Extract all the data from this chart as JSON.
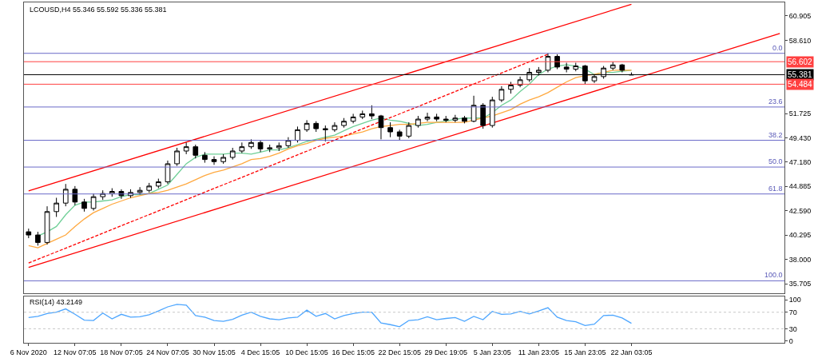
{
  "chart_data": [
    {
      "type": "candlestick",
      "title": "LCOUSD,H4 55.346 55.592 55.336 55.381",
      "color": "#000000",
      "categories": [
        null,
        null,
        null,
        null,
        null,
        null,
        null,
        null,
        null,
        null,
        null,
        null,
        null,
        null,
        null,
        null,
        null,
        null,
        null,
        null,
        null,
        null,
        null,
        null,
        null,
        null,
        null,
        null,
        null,
        null,
        null,
        null,
        null,
        null,
        null,
        null,
        null,
        null,
        null,
        null,
        null,
        null,
        null,
        null,
        null,
        null,
        null,
        null,
        null,
        null,
        null,
        null,
        null,
        null,
        null,
        null,
        null,
        null,
        null,
        null,
        null,
        null,
        null,
        null,
        null,
        null,
        null,
        null,
        null,
        null,
        null,
        null,
        null,
        null,
        null,
        null,
        null,
        null,
        null,
        null,
        null,
        null
      ],
      "ohlc": [
        [
          40.6,
          40.9,
          40.0,
          40.3
        ],
        [
          40.3,
          40.6,
          39.3,
          39.6
        ],
        [
          39.6,
          43.0,
          39.4,
          42.5
        ],
        [
          42.5,
          43.8,
          42.0,
          43.3
        ],
        [
          43.3,
          45.1,
          43.0,
          44.6
        ],
        [
          44.6,
          44.9,
          43.1,
          43.4
        ],
        [
          43.4,
          43.7,
          42.5,
          42.8
        ],
        [
          42.8,
          44.2,
          42.6,
          43.9
        ],
        [
          43.9,
          44.5,
          43.6,
          44.2
        ],
        [
          44.2,
          44.7,
          43.9,
          44.4
        ],
        [
          44.4,
          44.6,
          43.7,
          44.0
        ],
        [
          44.0,
          44.6,
          43.8,
          44.3
        ],
        [
          44.3,
          44.8,
          44.1,
          44.5
        ],
        [
          44.5,
          45.2,
          44.3,
          44.9
        ],
        [
          44.9,
          45.6,
          44.7,
          45.3
        ],
        [
          45.3,
          47.3,
          45.1,
          47.0
        ],
        [
          47.0,
          48.5,
          46.8,
          48.2
        ],
        [
          48.2,
          49.0,
          47.9,
          48.6
        ],
        [
          48.6,
          48.8,
          47.5,
          47.8
        ],
        [
          47.8,
          48.1,
          47.1,
          47.4
        ],
        [
          47.4,
          47.7,
          46.9,
          47.2
        ],
        [
          47.2,
          47.9,
          47.0,
          47.6
        ],
        [
          47.6,
          48.5,
          47.4,
          48.2
        ],
        [
          48.2,
          49.0,
          48.0,
          48.6
        ],
        [
          48.6,
          49.3,
          48.4,
          49.0
        ],
        [
          49.0,
          49.2,
          48.1,
          48.4
        ],
        [
          48.4,
          48.8,
          48.1,
          48.5
        ],
        [
          48.5,
          49.0,
          48.2,
          48.7
        ],
        [
          48.7,
          49.5,
          48.5,
          49.2
        ],
        [
          49.2,
          50.5,
          49.0,
          50.2
        ],
        [
          50.2,
          51.1,
          50.0,
          50.8
        ],
        [
          50.8,
          51.0,
          50.0,
          50.3
        ],
        [
          50.3,
          50.6,
          49.1,
          50.2
        ],
        [
          50.2,
          50.9,
          50.0,
          50.6
        ],
        [
          50.6,
          51.3,
          50.4,
          51.0
        ],
        [
          51.0,
          51.7,
          50.8,
          51.4
        ],
        [
          51.4,
          52.0,
          51.2,
          51.7
        ],
        [
          51.7,
          52.5,
          51.2,
          51.5
        ],
        [
          51.5,
          51.6,
          49.3,
          50.4
        ],
        [
          50.4,
          50.9,
          49.5,
          50.0
        ],
        [
          50.0,
          50.2,
          49.2,
          49.6
        ],
        [
          49.6,
          50.9,
          49.4,
          50.6
        ],
        [
          50.6,
          51.5,
          50.4,
          51.2
        ],
        [
          51.2,
          51.8,
          51.0,
          51.4
        ],
        [
          51.4,
          51.7,
          51.0,
          51.2
        ],
        [
          51.2,
          51.5,
          50.9,
          51.1
        ],
        [
          51.1,
          51.6,
          50.9,
          51.3
        ],
        [
          51.3,
          51.5,
          50.8,
          51.0
        ],
        [
          51.0,
          53.4,
          50.9,
          52.5
        ],
        [
          52.5,
          52.7,
          50.3,
          50.6
        ],
        [
          50.6,
          53.3,
          50.4,
          53.0
        ],
        [
          53.0,
          54.3,
          52.8,
          54.0
        ],
        [
          54.0,
          54.7,
          53.6,
          54.4
        ],
        [
          54.4,
          55.2,
          54.2,
          54.9
        ],
        [
          54.9,
          56.0,
          54.7,
          55.6
        ],
        [
          55.6,
          56.1,
          55.3,
          55.8
        ],
        [
          55.8,
          57.4,
          55.6,
          57.1
        ],
        [
          57.1,
          57.3,
          55.9,
          56.1
        ],
        [
          56.1,
          56.5,
          55.6,
          55.9
        ],
        [
          55.9,
          56.5,
          55.7,
          56.2
        ],
        [
          56.2,
          56.3,
          54.5,
          54.8
        ],
        [
          54.8,
          55.4,
          54.6,
          55.2
        ],
        [
          55.2,
          56.2,
          55.0,
          56.0
        ],
        [
          56.0,
          56.6,
          55.8,
          56.3
        ],
        [
          56.3,
          56.4,
          55.6,
          55.8
        ],
        [
          55.346,
          55.592,
          55.336,
          55.381
        ],
        null,
        null,
        null,
        null,
        null,
        null,
        null,
        null,
        null,
        null,
        null,
        null,
        null,
        null,
        null,
        null
      ],
      "series": [
        {
          "type": "line",
          "color": "#6fcf97",
          "values": [
            null,
            40.2,
            40.6,
            41.1,
            42.2,
            43.1,
            43.4,
            43.4,
            43.5,
            43.6,
            43.9,
            44.1,
            44.1,
            44.2,
            44.6,
            45.0,
            46.0,
            47.0,
            47.6,
            47.9,
            47.9,
            47.9,
            48.0,
            48.0,
            47.9,
            48.1,
            48.3,
            48.3,
            48.5,
            48.8,
            49.1,
            49.3,
            49.5,
            49.7,
            50.1,
            50.5,
            50.8,
            51.1,
            51.3,
            51.1,
            51.0,
            50.8,
            50.6,
            50.7,
            50.9,
            51.0,
            51.2,
            51.3,
            51.3,
            51.3,
            51.8,
            52.5,
            53.0,
            53.8,
            54.5,
            55.4,
            55.9,
            56.2,
            56.3,
            56.2,
            55.9,
            55.4,
            55.6,
            55.6,
            55.7,
            55.8,
            null,
            null,
            null,
            null,
            null,
            null,
            null,
            null,
            null,
            null,
            null,
            null,
            null,
            null,
            null,
            null
          ]
        },
        {
          "type": "line",
          "color": "#ffa940",
          "values": [
            39.3,
            39.1,
            39.5,
            39.9,
            40.3,
            41.1,
            41.8,
            42.4,
            42.8,
            43.2,
            43.5,
            43.8,
            44.0,
            44.2,
            44.3,
            44.5,
            44.8,
            45.1,
            45.5,
            45.9,
            46.2,
            46.4,
            46.7,
            47.0,
            47.4,
            47.5,
            47.7,
            48.0,
            48.4,
            48.7,
            48.9,
            49.2,
            49.4,
            49.5,
            49.6,
            49.8,
            50.0,
            50.3,
            50.5,
            50.6,
            50.7,
            50.7,
            50.8,
            50.9,
            50.9,
            50.9,
            50.9,
            50.9,
            51.1,
            51.3,
            51.5,
            51.8,
            52.1,
            52.6,
            53.0,
            53.3,
            53.7,
            54.2,
            54.7,
            55.1,
            55.3,
            55.4,
            55.6,
            55.8,
            55.8,
            55.8,
            null,
            null,
            null,
            null,
            null,
            null,
            null,
            null,
            null,
            null,
            null,
            null,
            null,
            null,
            null,
            null
          ]
        },
        {
          "type": "line",
          "color": "#ff0000",
          "values": [
            44.45,
            null,
            null,
            null,
            null,
            null,
            null,
            null,
            null,
            null,
            null,
            null,
            null,
            null,
            null,
            null,
            null,
            null,
            null,
            null,
            null,
            null,
            null,
            null,
            null,
            null,
            null,
            null,
            null,
            null,
            null,
            null,
            null,
            null,
            null,
            null,
            null,
            null,
            null,
            null,
            null,
            null,
            null,
            null,
            null,
            null,
            null,
            null,
            null,
            null,
            null,
            null,
            null,
            null,
            null,
            null,
            null,
            null,
            null,
            null,
            null,
            null,
            null,
            null,
            null,
            62.0,
            null,
            null,
            null,
            null,
            null,
            null,
            null,
            null,
            null,
            null,
            null,
            null,
            null,
            null,
            null,
            null
          ]
        },
        {
          "type": "line",
          "color": "#ff0000",
          "values": [
            37.25,
            null,
            null,
            null,
            null,
            null,
            null,
            null,
            null,
            null,
            null,
            null,
            null,
            null,
            null,
            null,
            null,
            null,
            null,
            null,
            null,
            null,
            null,
            null,
            null,
            null,
            null,
            null,
            null,
            null,
            null,
            null,
            null,
            null,
            null,
            null,
            null,
            null,
            null,
            null,
            null,
            null,
            null,
            null,
            null,
            null,
            null,
            null,
            null,
            null,
            null,
            null,
            null,
            null,
            null,
            null,
            null,
            null,
            null,
            null,
            null,
            null,
            null,
            null,
            null,
            null,
            null,
            null,
            null,
            null,
            null,
            null,
            null,
            null,
            null,
            null,
            null,
            null,
            null,
            null,
            null,
            59.25
          ]
        },
        {
          "type": "line",
          "color": "#ff0000",
          "line_style": "dashed",
          "values": [
            37.66,
            null,
            null,
            null,
            null,
            null,
            null,
            null,
            null,
            null,
            null,
            null,
            null,
            null,
            null,
            null,
            null,
            null,
            null,
            null,
            null,
            null,
            null,
            null,
            null,
            null,
            null,
            null,
            null,
            null,
            null,
            null,
            null,
            null,
            null,
            null,
            null,
            null,
            null,
            null,
            null,
            null,
            null,
            null,
            null,
            null,
            null,
            null,
            null,
            null,
            null,
            null,
            null,
            null,
            null,
            null,
            57.3,
            null,
            null,
            null,
            null,
            null,
            null,
            null,
            null,
            null,
            null,
            null,
            null,
            null,
            null,
            null,
            null,
            null,
            null,
            null,
            null,
            null,
            null,
            null,
            null,
            null
          ]
        }
      ],
      "ylim": [
        34.8,
        62.18
      ],
      "yticks": [
        {
          "value": 60.905,
          "label": "60.905"
        },
        {
          "value": 58.61,
          "label": "58.610"
        },
        {
          "value": 51.725,
          "label": "51.725"
        },
        {
          "value": 49.43,
          "label": "49.430"
        },
        {
          "value": 47.18,
          "label": "47.180"
        },
        {
          "value": 44.885,
          "label": "44.885"
        },
        {
          "value": 42.59,
          "label": "42.590"
        },
        {
          "value": 40.295,
          "label": "40.295"
        },
        {
          "value": 38.0,
          "label": "38.000"
        },
        {
          "value": 35.705,
          "label": "35.705"
        }
      ],
      "ref_lines": [
        {
          "axis": "y",
          "value": 57.39,
          "color": "#6a6ac8"
        },
        {
          "axis": "y",
          "value": 52.34,
          "color": "#6a6ac8"
        },
        {
          "axis": "y",
          "value": 49.21,
          "color": "#6a6ac8"
        },
        {
          "axis": "y",
          "value": 46.69,
          "color": "#6a6ac8"
        },
        {
          "axis": "y",
          "value": 44.16,
          "color": "#6a6ac8"
        },
        {
          "axis": "y",
          "value": 35.99,
          "color": "#6a6ac8"
        },
        {
          "axis": "y",
          "value": 56.602,
          "label": "56.602",
          "color": "#ff4040"
        },
        {
          "axis": "y",
          "value": 55.381,
          "label": "55.381",
          "color": "#000000"
        },
        {
          "axis": "y",
          "value": 54.484,
          "label": "54.484",
          "color": "#ff4040"
        }
      ],
      "annotations": [
        {
          "text": "0.0",
          "y": 57.39
        },
        {
          "text": "23.6",
          "y": 52.34
        },
        {
          "text": "38.2",
          "y": 49.21
        },
        {
          "text": "50.0",
          "y": 46.69
        },
        {
          "text": "61.8",
          "y": 44.16
        },
        {
          "text": "100.0",
          "y": 35.99
        }
      ],
      "tick_labels": "y",
      "marker": "none"
    },
    {
      "type": "line",
      "title": "RSI(14) 43.2149",
      "marker": "none",
      "categories": [
        "6 Nov 2020",
        null,
        null,
        null,
        null,
        "12 Nov 07:05",
        null,
        null,
        null,
        null,
        "18 Nov 07:05",
        null,
        null,
        null,
        null,
        "24 Nov 07:05",
        null,
        null,
        null,
        null,
        "30 Nov 15:05",
        null,
        null,
        null,
        null,
        "4 Dec 15:05",
        null,
        null,
        null,
        null,
        "10 Dec 15:05",
        null,
        null,
        null,
        null,
        "16 Dec 15:05",
        null,
        null,
        null,
        null,
        "22 Dec 15:05",
        null,
        null,
        null,
        null,
        "29 Dec 19:05",
        null,
        null,
        null,
        null,
        "5 Jan 23:05",
        null,
        null,
        null,
        null,
        "11 Jan 23:05",
        null,
        null,
        null,
        null,
        "15 Jan 23:05",
        null,
        null,
        null,
        null,
        "22 Jan 03:05",
        null,
        null,
        null,
        null,
        null,
        null,
        null,
        null,
        null,
        null,
        null,
        null,
        null,
        null,
        null,
        null
      ],
      "series": [
        {
          "color": "#4da6ff",
          "values": [
            57,
            60,
            67,
            70,
            78,
            65,
            51,
            50,
            68,
            54,
            65,
            58,
            59,
            64,
            73,
            83,
            89,
            87,
            62,
            58,
            50,
            48,
            53,
            63,
            70,
            60,
            54,
            52,
            56,
            58,
            75,
            60,
            67,
            54,
            62,
            67,
            70,
            70,
            44,
            40,
            35,
            50,
            52,
            59,
            52,
            55,
            57,
            48,
            60,
            52,
            72,
            65,
            66,
            72,
            66,
            73,
            81,
            58,
            50,
            47,
            38,
            41,
            62,
            63,
            56,
            43,
            null,
            null,
            null,
            null,
            null,
            null,
            null,
            null,
            null,
            null,
            null,
            null,
            null,
            null,
            null,
            null
          ]
        }
      ],
      "ylim": [
        -4,
        108
      ],
      "yticks": [
        0,
        30,
        70,
        100
      ],
      "ref_lines": [
        {
          "axis": "y",
          "value": 70,
          "color": "#c8c8c8",
          "line_style": "dotted"
        },
        {
          "axis": "y",
          "value": 30,
          "color": "#c8c8c8",
          "line_style": "dotted"
        }
      ]
    }
  ]
}
